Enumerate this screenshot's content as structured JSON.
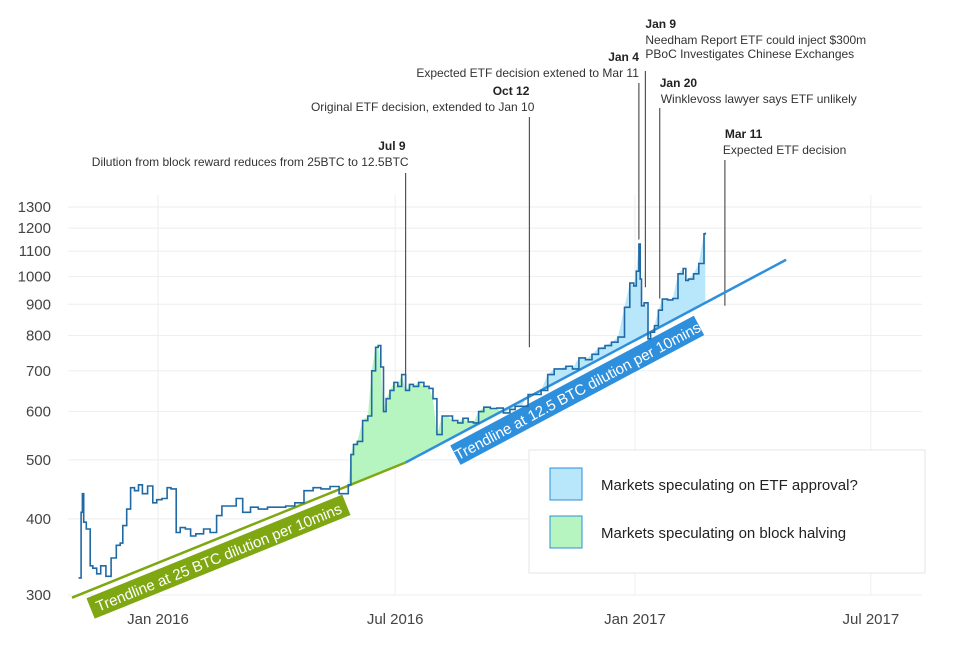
{
  "chart_data": {
    "type": "line",
    "y_scale": "log",
    "grid": true,
    "x_range": [
      "2015-10-25",
      "2017-07-31"
    ],
    "y_range": [
      295,
      1420
    ],
    "x_ticks": [
      {
        "date": "2016-01-01",
        "label": "Jan 2016"
      },
      {
        "date": "2016-07-01",
        "label": "Jul 2016"
      },
      {
        "date": "2017-01-01",
        "label": "Jan 2017"
      },
      {
        "date": "2017-07-01",
        "label": "Jul 2017"
      }
    ],
    "y_ticks": [
      300,
      400,
      500,
      600,
      700,
      800,
      900,
      1000,
      1100,
      1200,
      1300
    ],
    "colors": {
      "price_line": "#1f6aa5",
      "trend1": "#7ea712",
      "trend2": "#2e8fdc",
      "halving_fill": "#b7f5c0",
      "etf_fill": "#b8e6fb",
      "grid": "#eeeeee"
    },
    "series": [
      {
        "values": [
          [
            "2015-11-01",
            320
          ],
          [
            "2015-11-03",
            410
          ],
          [
            "2015-11-04",
            440
          ],
          [
            "2015-11-05",
            395
          ],
          [
            "2015-11-07",
            385
          ],
          [
            "2015-11-10",
            335
          ],
          [
            "2015-11-12",
            332
          ],
          [
            "2015-11-15",
            325
          ],
          [
            "2015-11-18",
            335
          ],
          [
            "2015-11-22",
            322
          ],
          [
            "2015-11-26",
            345
          ],
          [
            "2015-11-30",
            362
          ],
          [
            "2015-12-03",
            365
          ],
          [
            "2015-12-05",
            390
          ],
          [
            "2015-12-08",
            415
          ],
          [
            "2015-12-11",
            450
          ],
          [
            "2015-12-14",
            445
          ],
          [
            "2015-12-17",
            455
          ],
          [
            "2015-12-20",
            440
          ],
          [
            "2015-12-24",
            453
          ],
          [
            "2015-12-28",
            425
          ],
          [
            "2015-12-31",
            430
          ],
          [
            "2016-01-04",
            432
          ],
          [
            "2016-01-08",
            450
          ],
          [
            "2016-01-11",
            448
          ],
          [
            "2016-01-15",
            380
          ],
          [
            "2016-01-18",
            387
          ],
          [
            "2016-01-22",
            385
          ],
          [
            "2016-01-26",
            375
          ],
          [
            "2016-01-30",
            378
          ],
          [
            "2016-02-05",
            385
          ],
          [
            "2016-02-10",
            380
          ],
          [
            "2016-02-15",
            405
          ],
          [
            "2016-02-19",
            420
          ],
          [
            "2016-02-24",
            420
          ],
          [
            "2016-03-01",
            432
          ],
          [
            "2016-03-06",
            410
          ],
          [
            "2016-03-12",
            418
          ],
          [
            "2016-03-18",
            415
          ],
          [
            "2016-03-25",
            418
          ],
          [
            "2016-04-01",
            418
          ],
          [
            "2016-04-08",
            420
          ],
          [
            "2016-04-15",
            425
          ],
          [
            "2016-04-22",
            445
          ],
          [
            "2016-04-29",
            450
          ],
          [
            "2016-05-05",
            448
          ],
          [
            "2016-05-12",
            452
          ],
          [
            "2016-05-19",
            440
          ],
          [
            "2016-05-26",
            455
          ],
          [
            "2016-05-28",
            510
          ],
          [
            "2016-05-30",
            530
          ],
          [
            "2016-06-02",
            536
          ],
          [
            "2016-06-06",
            580
          ],
          [
            "2016-06-10",
            590
          ],
          [
            "2016-06-13",
            700
          ],
          [
            "2016-06-16",
            765
          ],
          [
            "2016-06-18",
            770
          ],
          [
            "2016-06-20",
            710
          ],
          [
            "2016-06-22",
            600
          ],
          [
            "2016-06-24",
            630
          ],
          [
            "2016-06-27",
            650
          ],
          [
            "2016-06-30",
            670
          ],
          [
            "2016-07-03",
            660
          ],
          [
            "2016-07-06",
            690
          ],
          [
            "2016-07-09",
            650
          ],
          [
            "2016-07-12",
            665
          ],
          [
            "2016-07-15",
            660
          ],
          [
            "2016-07-19",
            670
          ],
          [
            "2016-07-23",
            660
          ],
          [
            "2016-07-27",
            655
          ],
          [
            "2016-07-30",
            630
          ],
          [
            "2016-08-02",
            550
          ],
          [
            "2016-08-06",
            590
          ],
          [
            "2016-08-10",
            590
          ],
          [
            "2016-08-14",
            580
          ],
          [
            "2016-08-18",
            575
          ],
          [
            "2016-08-22",
            585
          ],
          [
            "2016-08-26",
            577
          ],
          [
            "2016-08-30",
            575
          ],
          [
            "2016-09-03",
            600
          ],
          [
            "2016-09-07",
            610
          ],
          [
            "2016-09-12",
            607
          ],
          [
            "2016-09-17",
            608
          ],
          [
            "2016-09-22",
            597
          ],
          [
            "2016-09-27",
            605
          ],
          [
            "2016-10-01",
            612
          ],
          [
            "2016-10-06",
            612
          ],
          [
            "2016-10-11",
            640
          ],
          [
            "2016-10-16",
            640
          ],
          [
            "2016-10-21",
            650
          ],
          [
            "2016-10-26",
            690
          ],
          [
            "2016-10-31",
            705
          ],
          [
            "2016-11-04",
            705
          ],
          [
            "2016-11-09",
            712
          ],
          [
            "2016-11-14",
            705
          ],
          [
            "2016-11-19",
            735
          ],
          [
            "2016-11-24",
            730
          ],
          [
            "2016-11-29",
            745
          ],
          [
            "2016-12-04",
            762
          ],
          [
            "2016-12-09",
            770
          ],
          [
            "2016-12-14",
            780
          ],
          [
            "2016-12-19",
            795
          ],
          [
            "2016-12-24",
            890
          ],
          [
            "2016-12-28",
            975
          ],
          [
            "2016-12-31",
            965
          ],
          [
            "2017-01-02",
            1020
          ],
          [
            "2017-01-04",
            1130
          ],
          [
            "2017-01-05",
            990
          ],
          [
            "2017-01-06",
            895
          ],
          [
            "2017-01-08",
            905
          ],
          [
            "2017-01-10",
            905
          ],
          [
            "2017-01-11",
            790
          ],
          [
            "2017-01-13",
            810
          ],
          [
            "2017-01-16",
            830
          ],
          [
            "2017-01-19",
            880
          ],
          [
            "2017-01-22",
            918
          ],
          [
            "2017-01-26",
            915
          ],
          [
            "2017-01-30",
            920
          ],
          [
            "2017-02-03",
            1010
          ],
          [
            "2017-02-07",
            1030
          ],
          [
            "2017-02-09",
            985
          ],
          [
            "2017-02-11",
            990
          ],
          [
            "2017-02-15",
            1010
          ],
          [
            "2017-02-19",
            1050
          ],
          [
            "2017-02-23",
            1175
          ],
          [
            "2017-02-24",
            1180
          ]
        ]
      }
    ],
    "trendlines": [
      {
        "label": "Trendline at 25 BTC dilution per 10mins",
        "start": [
          "2015-10-27",
          297
        ],
        "end": [
          "2016-07-09",
          495
        ]
      },
      {
        "label": "Trendline at 12.5 BTC dilution per 10mins",
        "start": [
          "2016-07-09",
          495
        ],
        "end": [
          "2017-04-27",
          1065
        ]
      }
    ],
    "shaded_regions": [
      {
        "legend": "Markets speculating on block halving",
        "start": "2016-05-26",
        "end": "2016-10-01",
        "color": "#b7f5c0"
      },
      {
        "legend": "Markets speculating on ETF approval?",
        "start": "2016-10-01",
        "end": "2017-02-24",
        "color": "#b8e6fb"
      }
    ],
    "legend_position": "bottom-right",
    "annotations": [
      {
        "date": "Jul 9",
        "lines": [
          "Dilution from block reward reduces from 25BTC to 12.5BTC"
        ],
        "x": "2016-07-09",
        "y": 660
      },
      {
        "date": "Oct 12",
        "lines": [
          "Original ETF decision, extended to Jan 10"
        ],
        "x": "2016-10-12",
        "y": 765
      },
      {
        "date": "Jan 4",
        "lines": [
          "Expected ETF decision extened to Mar 11"
        ],
        "x": "2017-01-04",
        "y": 1150
      },
      {
        "date": "Jan 9",
        "lines": [
          "Needham Report ETF could inject $300m",
          "PBoC Investigates Chinese Exchanges"
        ],
        "x": "2017-01-09",
        "y": 960
      },
      {
        "date": "Jan 20",
        "lines": [
          "Winklevoss lawyer says ETF unlikely"
        ],
        "x": "2017-01-20",
        "y": 920
      },
      {
        "date": "Mar 11",
        "lines": [
          "Expected ETF decision"
        ],
        "x": "2017-03-11",
        "y": 895
      }
    ]
  }
}
